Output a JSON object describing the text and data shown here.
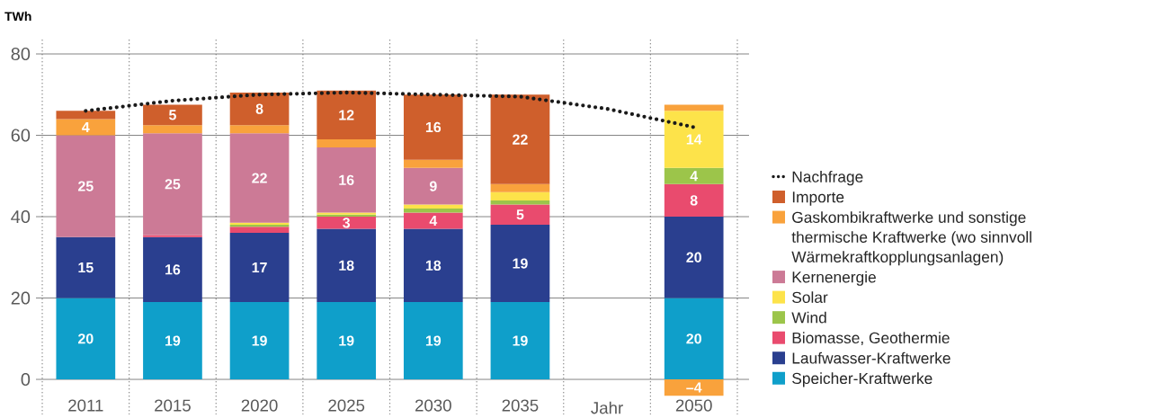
{
  "chart_data": {
    "type": "bar",
    "stacked": true,
    "ylabel": "TWh",
    "xlabel": "Jahr",
    "categories": [
      "2011",
      "2015",
      "2020",
      "2025",
      "2030",
      "2035",
      null,
      "2050"
    ],
    "ylim": [
      -4.5,
      80
    ],
    "yticks": [
      0,
      20,
      40,
      60,
      80
    ],
    "grid": "y",
    "legend": "right",
    "series": [
      {
        "name": "Speicher-Kraftwerke",
        "color": "#0f9fca",
        "values": [
          20,
          19,
          19,
          19,
          19,
          19,
          null,
          20
        ],
        "value_labels": [
          "20",
          "19",
          "19",
          "19",
          "19",
          "19",
          null,
          "20"
        ]
      },
      {
        "name": "Laufwasser-Kraftwerke",
        "color": "#2a3f8f",
        "values": [
          15,
          16,
          17,
          18,
          18,
          19,
          null,
          20
        ],
        "value_labels": [
          "15",
          "16",
          "17",
          "18",
          "18",
          "19",
          null,
          "20"
        ]
      },
      {
        "name": "Biomasse, Geothermie",
        "color": "#e94b6e",
        "values": [
          null,
          0.5,
          1.5,
          3,
          4,
          5,
          null,
          8
        ],
        "value_labels": [
          null,
          null,
          null,
          "3",
          "4",
          "5",
          null,
          "8"
        ]
      },
      {
        "name": "Wind",
        "color": "#9cc54a",
        "values": [
          null,
          null,
          0.5,
          0.5,
          1,
          1,
          null,
          4
        ],
        "value_labels": [
          null,
          null,
          null,
          null,
          null,
          null,
          null,
          "4"
        ]
      },
      {
        "name": "Solar",
        "color": "#fde34a",
        "values": [
          null,
          null,
          0.5,
          0.5,
          1,
          2,
          null,
          14
        ],
        "value_labels": [
          null,
          null,
          null,
          null,
          null,
          null,
          null,
          "14"
        ]
      },
      {
        "name": "Kernenergie",
        "color": "#cc7a96",
        "values": [
          25,
          25,
          22,
          16,
          9,
          null,
          null,
          null
        ],
        "value_labels": [
          "25",
          "25",
          "22",
          "16",
          "9",
          null,
          null,
          null
        ]
      },
      {
        "name": "Gaskombikraftwerke und sonstige thermische Kraftwerke (wo sinnvoll Wärmekraftkopplungsanlagen)",
        "color": "#f9a23c",
        "values": [
          4,
          2,
          2,
          2,
          2,
          2,
          null,
          1.5
        ],
        "value_labels": [
          "4",
          null,
          null,
          null,
          null,
          null,
          null,
          null
        ]
      },
      {
        "color": "#f9a23c",
        "values": [
          null,
          null,
          null,
          null,
          null,
          null,
          null,
          -4
        ],
        "value_labels": [
          null,
          null,
          null,
          null,
          null,
          null,
          null,
          "–4"
        ]
      },
      {
        "name": "Importe",
        "color": "#cf5f2c",
        "values": [
          2,
          5,
          8,
          12,
          16,
          22,
          null,
          null
        ],
        "value_labels": [
          null,
          "5",
          "8",
          "12",
          "16",
          "22",
          null,
          null
        ]
      },
      {
        "name": "Nachfrage",
        "type": "line",
        "color": "#1a1a1a",
        "line_style": "dotted",
        "marker": "none",
        "values": [
          66,
          68.5,
          70,
          70.5,
          70,
          69.5,
          66.5,
          62
        ]
      }
    ]
  }
}
